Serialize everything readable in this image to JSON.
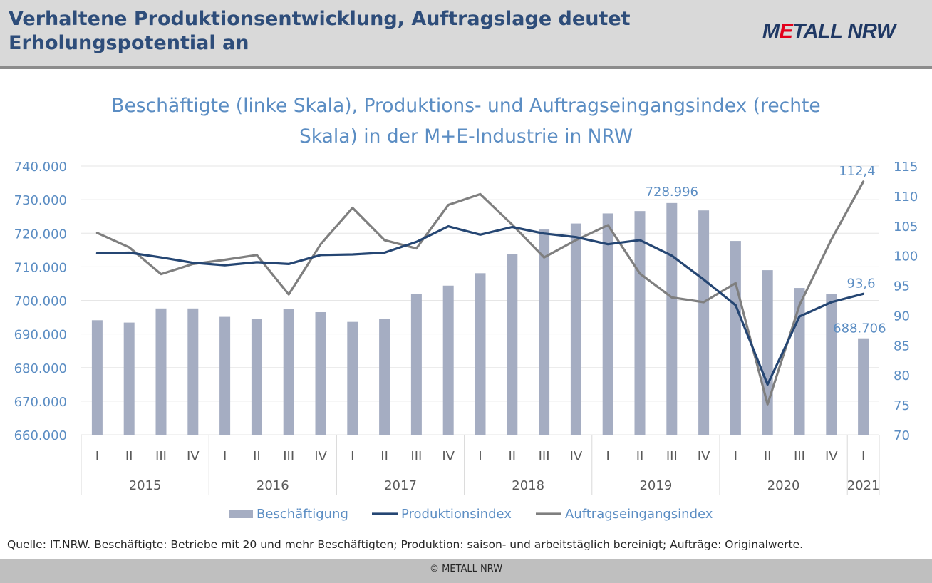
{
  "header": {
    "title": "Verhaltene Produktionsentwicklung, Auftragslage deutet Erholungspotential an",
    "logo": {
      "part1": "M",
      "part2": "E",
      "part3": "TALL NRW"
    }
  },
  "source_note": "Quelle: IT.NRW. Beschäftigte: Betriebe mit 20 und mehr Beschäftigten; Produktion: saison- und arbeitstäglich bereinigt; Aufträge: Originalwerte.",
  "footer": {
    "copyright": "© METALL NRW"
  },
  "colors": {
    "title_text": "#2e4d7a",
    "chart_title": "#5b8dc3",
    "axis_text": "#5b8dc3",
    "bar": "#a5adc2",
    "produktion": "#254673",
    "auftrag": "#7f7f7f",
    "grid": "#e6e6e6",
    "category_text": "#595959"
  },
  "chart_data": {
    "type": "bar",
    "title_lines": [
      "Beschäftigte (linke Skala), Produktions- und Auftragseingangsindex (rechte",
      "Skala) in der M+E-Industrie in NRW"
    ],
    "categories": [
      "I",
      "II",
      "III",
      "IV",
      "I",
      "II",
      "III",
      "IV",
      "I",
      "II",
      "III",
      "IV",
      "I",
      "II",
      "III",
      "IV",
      "I",
      "II",
      "III",
      "IV",
      "I",
      "II",
      "III",
      "IV",
      "I"
    ],
    "groups": [
      {
        "label": "2015",
        "count": 4
      },
      {
        "label": "2016",
        "count": 4
      },
      {
        "label": "2017",
        "count": 4
      },
      {
        "label": "2018",
        "count": 4
      },
      {
        "label": "2019",
        "count": 4
      },
      {
        "label": "2020",
        "count": 4
      },
      {
        "label": "2021",
        "count": 1
      }
    ],
    "y_left": {
      "min": 660000,
      "max": 740000,
      "step": 10000,
      "ticks": [
        "660.000",
        "670.000",
        "680.000",
        "690.000",
        "700.000",
        "710.000",
        "720.000",
        "730.000",
        "740.000"
      ]
    },
    "y_right": {
      "min": 70,
      "max": 115,
      "step": 5,
      "ticks": [
        "70",
        "75",
        "80",
        "85",
        "90",
        "95",
        "100",
        "105",
        "110",
        "115"
      ]
    },
    "series": [
      {
        "name": "Beschäftigung",
        "type": "bar",
        "axis": "left",
        "values": [
          694100,
          693400,
          697600,
          697600,
          695100,
          694500,
          697400,
          696500,
          693600,
          694500,
          701900,
          704400,
          708100,
          713800,
          721100,
          722900,
          725900,
          726600,
          728996,
          726800,
          717700,
          709000,
          703700,
          701900,
          688706
        ]
      },
      {
        "name": "Produktionsindex",
        "type": "line",
        "axis": "right",
        "values": [
          100.4,
          100.5,
          99.7,
          98.8,
          98.4,
          98.9,
          98.6,
          100.1,
          100.2,
          100.5,
          102.3,
          104.9,
          103.5,
          104.8,
          103.7,
          103.1,
          101.9,
          102.6,
          100.0,
          96.0,
          91.7,
          78.4,
          89.8,
          92.2,
          93.6
        ]
      },
      {
        "name": "Auftragseingangsindex",
        "type": "line",
        "axis": "right",
        "values": [
          103.8,
          101.4,
          96.9,
          98.6,
          99.3,
          100.1,
          93.5,
          101.9,
          108.0,
          102.6,
          101.2,
          108.5,
          110.3,
          105.2,
          99.7,
          102.6,
          105.1,
          97.0,
          93.0,
          92.2,
          95.4,
          75.1,
          91.7,
          102.7,
          112.4
        ]
      }
    ],
    "data_labels": [
      {
        "text": "728.996",
        "series": "Beschäftigung",
        "index": 18
      },
      {
        "text": "688.706",
        "series": "Beschäftigung",
        "index": 24
      },
      {
        "text": "93,6",
        "series": "Produktionsindex",
        "index": 24
      },
      {
        "text": "112,4",
        "series": "Auftragseingangsindex",
        "index": 24
      }
    ],
    "legend": {
      "placement": "bottom"
    },
    "grid": true
  }
}
